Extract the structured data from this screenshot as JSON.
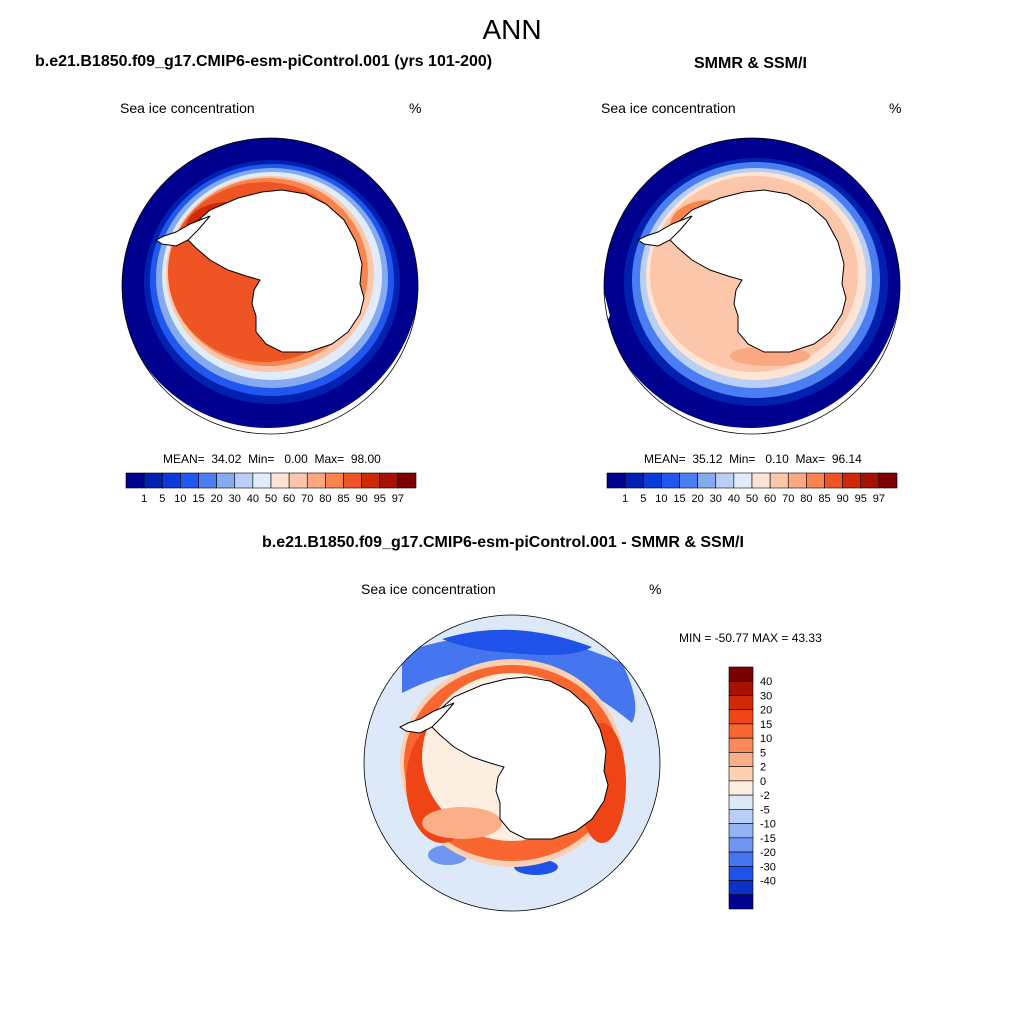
{
  "title": "ANN",
  "panels": {
    "model": {
      "heading": "b.e21.B1850.f09_g17.CMIP6-esm-piControl.001 (yrs 101-200)",
      "variable": "Sea ice concentration",
      "units": "%",
      "stats": {
        "mean_label": "MEAN=",
        "mean": "34.02",
        "min_label": "Min=",
        "min": "0.00",
        "max_label": "Max=",
        "max": "98.00"
      }
    },
    "obs": {
      "heading": "SMMR & SSM/I",
      "variable": "Sea ice concentration",
      "units": "%",
      "stats": {
        "mean_label": "MEAN=",
        "mean": "35.12",
        "min_label": "Min=",
        "min": "0.10",
        "max_label": "Max=",
        "max": "96.14"
      }
    },
    "diff": {
      "heading": "b.e21.B1850.f09_g17.CMIP6-esm-piControl.001 - SMMR & SSM/I",
      "variable": "Sea ice concentration",
      "units": "%",
      "minmax": "MIN = -50.77 MAX =  43.33"
    }
  },
  "colorbars": {
    "concentration": {
      "labels": [
        "1",
        "5",
        "10",
        "15",
        "20",
        "30",
        "40",
        "50",
        "60",
        "70",
        "80",
        "85",
        "90",
        "95",
        "97"
      ],
      "colors": [
        "#00008f",
        "#0020b0",
        "#0a3ad8",
        "#2057f0",
        "#4a7ef2",
        "#86aaf0",
        "#b9cff5",
        "#e0ecfa",
        "#fde4d4",
        "#fcc6aa",
        "#fba882",
        "#f9844e",
        "#ef5524",
        "#cf2a08",
        "#a51203",
        "#7d0000"
      ]
    },
    "difference": {
      "labels": [
        "40",
        "30",
        "20",
        "15",
        "10",
        "5",
        "2",
        "0",
        "-2",
        "-5",
        "-10",
        "-15",
        "-20",
        "-30",
        "-40"
      ],
      "colors": [
        "#7d0000",
        "#a81000",
        "#cf2a08",
        "#ef4416",
        "#f96630",
        "#fb8a58",
        "#fcae88",
        "#fdd0b4",
        "#fdeee2",
        "#dde9f8",
        "#b9cff5",
        "#94b3f2",
        "#6e95f0",
        "#4575ef",
        "#1f52e8",
        "#0a30c8",
        "#00008f"
      ]
    }
  },
  "map_style": {
    "ocean_fill": "#ffffff",
    "land_fill": "#ffffff",
    "coast_color": "#000000"
  }
}
